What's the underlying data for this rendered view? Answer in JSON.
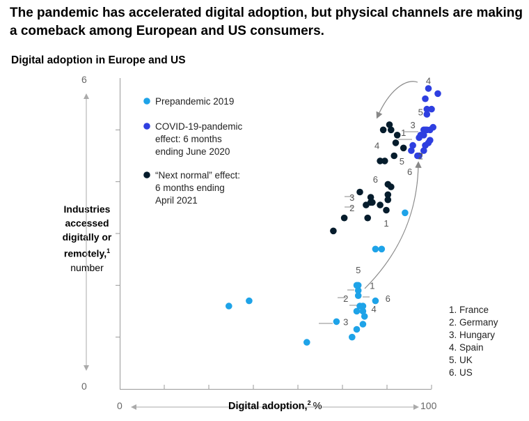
{
  "title": "The pandemic has accelerated digital adoption, but physical channels are making a comeback among European and US consumers.",
  "subtitle": "Digital adoption in Europe and US",
  "y_axis": {
    "label_lines": [
      "Industries",
      "accessed",
      "digitally or",
      "remotely,"
    ],
    "label_sup": "1",
    "label_unit": "number",
    "min_label": "0",
    "max_label": "6"
  },
  "x_axis": {
    "label": "Digital adoption,",
    "label_sup": "2",
    "label_unit": "%",
    "min_label": "0",
    "max_label": "100"
  },
  "country_notes": [
    "1. France",
    "2. Germany",
    "3. Hungary",
    "4. Spain",
    "5. UK",
    "6. US"
  ],
  "legend": [
    {
      "label_lines": [
        "Prepandemic 2019"
      ],
      "color": "#1ea3e8"
    },
    {
      "label_lines": [
        "COVID-19-pandemic",
        "effect: 6 months",
        "ending June 2020"
      ],
      "color": "#2e3fe0"
    },
    {
      "label_lines": [
        "“Next normal” effect:",
        "6 months ending",
        "April 2021"
      ],
      "color": "#051c2c"
    }
  ],
  "chart_data": {
    "type": "scatter",
    "title": "The pandemic has accelerated digital adoption, but physical channels are making a comeback among European and US consumers.",
    "subtitle": "Digital adoption in Europe and US",
    "xlabel": "Digital adoption, %",
    "ylabel": "Industries accessed digitally or remotely, number",
    "xlim": [
      0,
      100
    ],
    "ylim": [
      0,
      6
    ],
    "grid": false,
    "series": [
      {
        "name": "Prepandemic 2019",
        "color": "#1ea3e8",
        "points": [
          [
            35,
            1.6
          ],
          [
            41.5,
            1.7
          ],
          [
            60,
            0.9
          ],
          [
            69.5,
            1.3
          ],
          [
            74.5,
            1.0
          ],
          [
            76,
            1.5
          ],
          [
            76.5,
            1.8
          ],
          [
            76.5,
            1.9
          ],
          [
            77,
            1.6
          ],
          [
            76.5,
            2.0
          ],
          [
            76,
            2.0
          ],
          [
            78,
            1.6
          ],
          [
            78,
            1.5
          ],
          [
            78.5,
            1.4
          ],
          [
            82,
            1.7
          ],
          [
            82,
            2.7
          ],
          [
            84,
            2.7
          ],
          [
            91.5,
            3.4
          ],
          [
            76,
            1.15
          ],
          [
            78,
            1.25
          ]
        ]
      },
      {
        "name": "COVID-19-pandemic effect: 6 months ending June 2020",
        "color": "#2e3fe0",
        "points": [
          [
            94,
            4.7
          ],
          [
            93.5,
            4.6
          ],
          [
            95.5,
            4.5
          ],
          [
            96,
            4.5
          ],
          [
            96.5,
            4.9
          ],
          [
            97.5,
            5.0
          ],
          [
            98,
            5.0
          ],
          [
            98.5,
            5.4
          ],
          [
            98.5,
            5.3
          ],
          [
            97.5,
            4.9
          ],
          [
            97.5,
            4.6
          ],
          [
            98,
            4.7
          ],
          [
            99,
            4.75
          ],
          [
            99.5,
            4.8
          ],
          [
            99.5,
            5.0
          ],
          [
            100,
            5.4
          ],
          [
            98,
            5.6
          ],
          [
            99,
            5.8
          ],
          [
            102,
            5.7
          ],
          [
            100.5,
            5.05
          ],
          [
            98.5,
            5.0
          ],
          [
            96,
            4.85
          ]
        ]
      },
      {
        "name": "“Next normal” effect: 6 months ending April 2021",
        "color": "#051c2c",
        "points": [
          [
            68.5,
            3.05
          ],
          [
            77,
            3.8
          ],
          [
            80.5,
            3.7
          ],
          [
            79,
            3.55
          ],
          [
            79.5,
            3.3
          ],
          [
            80.5,
            3.6
          ],
          [
            81,
            3.6
          ],
          [
            83.5,
            3.55
          ],
          [
            85.5,
            3.45
          ],
          [
            86,
            3.65
          ],
          [
            86,
            3.75
          ],
          [
            86,
            3.95
          ],
          [
            87,
            3.9
          ],
          [
            83.5,
            4.4
          ],
          [
            85,
            4.4
          ],
          [
            88,
            4.5
          ],
          [
            89,
            4.9
          ],
          [
            91,
            4.65
          ],
          [
            88.5,
            4.75
          ],
          [
            86.5,
            5.1
          ],
          [
            87,
            5.0
          ],
          [
            84.5,
            5.0
          ],
          [
            72,
            3.3
          ]
        ]
      }
    ],
    "annotations": [
      {
        "text": "4",
        "x": 99,
        "y": 5.95
      },
      {
        "text": "5",
        "x": 96.5,
        "y": 5.35
      },
      {
        "text": "3",
        "x": 94,
        "y": 5.1
      },
      {
        "text": "1",
        "x": 91,
        "y": 4.95
      },
      {
        "text": "5",
        "x": 90.5,
        "y": 4.4
      },
      {
        "text": "6",
        "x": 93,
        "y": 4.2
      },
      {
        "text": "2",
        "x": 96.5,
        "y": 4.5
      },
      {
        "text": "4",
        "x": 82.5,
        "y": 4.7
      },
      {
        "text": "6",
        "x": 82,
        "y": 4.05
      },
      {
        "text": "3",
        "x": 74.5,
        "y": 3.7
      },
      {
        "text": "2",
        "x": 74.5,
        "y": 3.5
      },
      {
        "text": "1",
        "x": 85.5,
        "y": 3.2
      },
      {
        "text": "5",
        "x": 76.5,
        "y": 2.3
      },
      {
        "text": "1",
        "x": 81,
        "y": 2.0
      },
      {
        "text": "2",
        "x": 72.5,
        "y": 1.75
      },
      {
        "text": "6",
        "x": 86,
        "y": 1.75
      },
      {
        "text": "4",
        "x": 81.5,
        "y": 1.55
      },
      {
        "text": "3",
        "x": 72.5,
        "y": 1.3
      }
    ],
    "country_notes": [
      "1. France",
      "2. Germany",
      "3. Hungary",
      "4. Spain",
      "5. UK",
      "6. US"
    ]
  }
}
